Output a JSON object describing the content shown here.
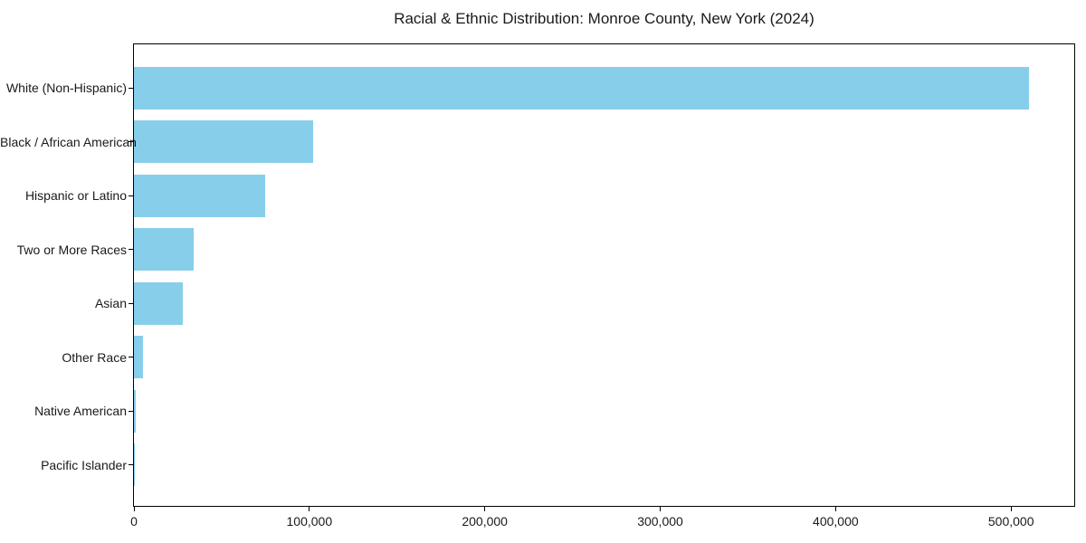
{
  "title": "Racial & Ethnic Distribution: Monroe County, New York (2024)",
  "chart_data": {
    "type": "bar",
    "orientation": "horizontal",
    "title": "Racial & Ethnic Distribution: Monroe County, New York (2024)",
    "categories": [
      "White (Non-Hispanic)",
      "Black / African American",
      "Hispanic or Latino",
      "Two or More Races",
      "Asian",
      "Other Race",
      "Native American",
      "Pacific Islander"
    ],
    "values": [
      510000,
      102000,
      75000,
      34000,
      28000,
      5000,
      1000,
      200
    ],
    "xlabel": "",
    "ylabel": "",
    "xlim": [
      0,
      536000
    ],
    "x_ticks": [
      0,
      100000,
      200000,
      300000,
      400000,
      500000
    ],
    "x_tick_labels": [
      "0",
      "100,000",
      "200,000",
      "300,000",
      "400,000",
      "500,000"
    ],
    "bar_color": "#87CEEB",
    "grid": false,
    "legend": false,
    "frame_color": "#000000",
    "background_color": "#ffffff",
    "text_color": "#1a1a1a"
  }
}
